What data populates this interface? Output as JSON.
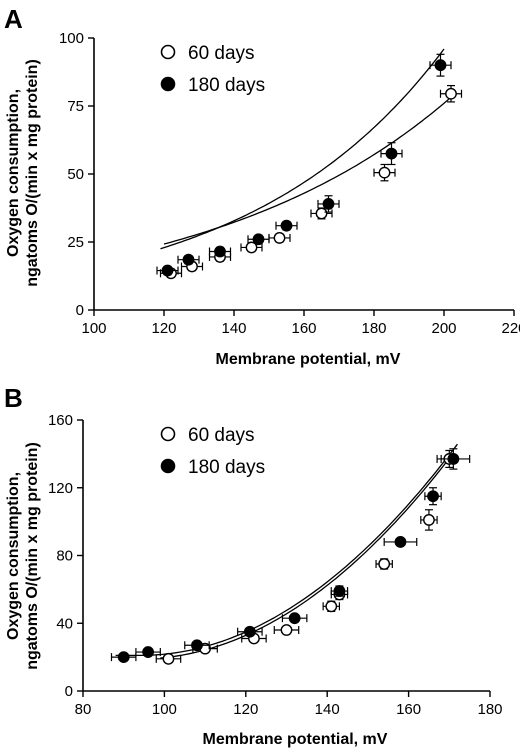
{
  "chart_data": [
    {
      "panel": "A",
      "type": "scatter",
      "xlabel": "Membrane potential, mV",
      "ylabel_line1": "Oxygen consumption,",
      "ylabel_line2": "ngatoms O/(min x mg protein)",
      "xlim": [
        100,
        220
      ],
      "ylim": [
        0,
        100
      ],
      "xticks": [
        100,
        120,
        140,
        160,
        180,
        200,
        220
      ],
      "yticks": [
        0,
        25,
        50,
        75,
        100
      ],
      "legend_position": "top-left",
      "series": [
        {
          "name": "60 days",
          "marker": "open-circle",
          "points": [
            {
              "x": 122,
              "y": 13.5,
              "xerr": 3,
              "yerr": 1.5
            },
            {
              "x": 128,
              "y": 16,
              "xerr": 3,
              "yerr": 1.5
            },
            {
              "x": 136,
              "y": 19.5,
              "xerr": 3,
              "yerr": 1.5
            },
            {
              "x": 145,
              "y": 23,
              "xerr": 3,
              "yerr": 1.5
            },
            {
              "x": 153,
              "y": 26.5,
              "xerr": 3,
              "yerr": 1.5
            },
            {
              "x": 165,
              "y": 35.5,
              "xerr": 3,
              "yerr": 2
            },
            {
              "x": 183,
              "y": 50.5,
              "xerr": 3,
              "yerr": 3
            },
            {
              "x": 202,
              "y": 79.5,
              "xerr": 3,
              "yerr": 3
            }
          ],
          "fit": {
            "a": 4.37,
            "b": 0.01428
          }
        },
        {
          "name": "180 days",
          "marker": "filled-circle",
          "points": [
            {
              "x": 121,
              "y": 14.5,
              "xerr": 3,
              "yerr": 1.5
            },
            {
              "x": 127,
              "y": 18.5,
              "xerr": 3,
              "yerr": 1.5
            },
            {
              "x": 136,
              "y": 21.5,
              "xerr": 3,
              "yerr": 1.5
            },
            {
              "x": 147,
              "y": 26,
              "xerr": 3,
              "yerr": 1.5
            },
            {
              "x": 155,
              "y": 31,
              "xerr": 3,
              "yerr": 1.5
            },
            {
              "x": 167,
              "y": 39,
              "xerr": 3,
              "yerr": 3
            },
            {
              "x": 185,
              "y": 57.5,
              "xerr": 3,
              "yerr": 4
            },
            {
              "x": 199,
              "y": 90,
              "xerr": 3,
              "yerr": 4
            }
          ],
          "fit": {
            "a": 2.68,
            "b": 0.01789
          }
        }
      ]
    },
    {
      "panel": "B",
      "type": "scatter",
      "xlabel": "Membrane potential, mV",
      "ylabel_line1": "Oxygen consumption,",
      "ylabel_line2": "ngatoms O/(min x mg protein)",
      "xlim": [
        80,
        180
      ],
      "ylim": [
        0,
        160
      ],
      "xticks": [
        80,
        100,
        120,
        140,
        160,
        180
      ],
      "yticks": [
        0,
        40,
        80,
        120,
        160
      ],
      "legend_position": "top-left",
      "series": [
        {
          "name": "60 days",
          "marker": "open-circle",
          "points": [
            {
              "x": 101,
              "y": 19,
              "xerr": 3,
              "yerr": 2
            },
            {
              "x": 110,
              "y": 25,
              "xerr": 3,
              "yerr": 2
            },
            {
              "x": 122,
              "y": 31,
              "xerr": 3,
              "yerr": 2
            },
            {
              "x": 130,
              "y": 36,
              "xerr": 3,
              "yerr": 2
            },
            {
              "x": 141,
              "y": 50,
              "xerr": 2,
              "yerr": 3
            },
            {
              "x": 143,
              "y": 57,
              "xerr": 2,
              "yerr": 3
            },
            {
              "x": 154,
              "y": 75,
              "xerr": 2,
              "yerr": 3
            },
            {
              "x": 165,
              "y": 101,
              "xerr": 2,
              "yerr": 6
            },
            {
              "x": 170,
              "y": 137,
              "xerr": 2,
              "yerr": 5
            }
          ],
          "fit": {
            "base": 19,
            "x0": 94,
            "k": 0.0205,
            "p": 2
          }
        },
        {
          "name": "180 days",
          "marker": "filled-circle",
          "points": [
            {
              "x": 90,
              "y": 20,
              "xerr": 3,
              "yerr": 2
            },
            {
              "x": 96,
              "y": 23,
              "xerr": 3,
              "yerr": 2
            },
            {
              "x": 108,
              "y": 27,
              "xerr": 3,
              "yerr": 2
            },
            {
              "x": 121,
              "y": 35,
              "xerr": 3,
              "yerr": 2
            },
            {
              "x": 132,
              "y": 43,
              "xerr": 3,
              "yerr": 2
            },
            {
              "x": 143,
              "y": 59,
              "xerr": 2,
              "yerr": 3
            },
            {
              "x": 158,
              "y": 88,
              "xerr": 4,
              "yerr": 2
            },
            {
              "x": 166,
              "y": 115,
              "xerr": 2,
              "yerr": 5
            },
            {
              "x": 171,
              "y": 137,
              "xerr": 4,
              "yerr": 6
            }
          ],
          "fit": {
            "base": 21,
            "x0": 94,
            "k": 0.0205,
            "p": 2
          }
        }
      ]
    }
  ]
}
